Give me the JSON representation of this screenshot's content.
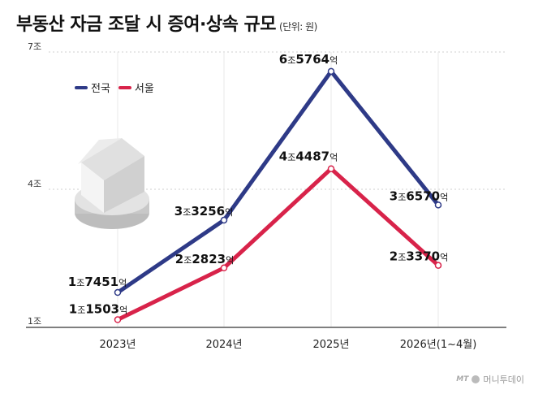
{
  "title": "부동산 자금 조달 시 증여·상속 규모",
  "unit": "(단위: 원)",
  "brand": "머니투데이",
  "brand_mark": "MT",
  "chart_data": {
    "type": "line",
    "categories": [
      "2023년",
      "2024년",
      "2025년",
      "2026년(1~4월)"
    ],
    "yticks": [
      "7조",
      "4조",
      "1조"
    ],
    "ylim": [
      1,
      7
    ],
    "grid": true,
    "legend_position": "top-left",
    "series": [
      {
        "name": "전국",
        "color": "#2e3a87",
        "values": [
          1.7451,
          3.3256,
          6.5764,
          3.657
        ],
        "labels": [
          {
            "num": "1",
            "a": "조",
            "b": "7451",
            "c": "억"
          },
          {
            "num": "3",
            "a": "조",
            "b": "3256",
            "c": "억"
          },
          {
            "num": "6",
            "a": "조",
            "b": "5764",
            "c": "억"
          },
          {
            "num": "3",
            "a": "조",
            "b": "6570",
            "c": "억"
          }
        ]
      },
      {
        "name": "서울",
        "color": "#d8234a",
        "values": [
          1.1503,
          2.2823,
          4.4487,
          2.337
        ],
        "labels": [
          {
            "num": "1",
            "a": "조",
            "b": "1503",
            "c": "억"
          },
          {
            "num": "2",
            "a": "조",
            "b": "2823",
            "c": "억"
          },
          {
            "num": "4",
            "a": "조",
            "b": "4487",
            "c": "억"
          },
          {
            "num": "2",
            "a": "조",
            "b": "3370",
            "c": "억"
          }
        ]
      }
    ]
  }
}
